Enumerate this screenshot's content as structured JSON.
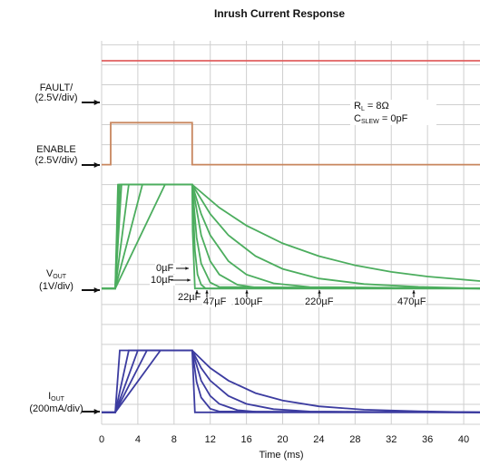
{
  "chart_data": {
    "type": "line",
    "title": "Inrush Current Response",
    "xlabel": "Time (ms)",
    "xlim": [
      0,
      41.8
    ],
    "xticks": [
      0,
      4,
      8,
      12,
      16,
      20,
      24,
      28,
      32,
      36,
      40
    ],
    "ylim": [
      0,
      19.2
    ],
    "yticks": [
      0,
      1,
      2,
      3,
      4,
      5,
      6,
      7,
      8,
      9,
      10,
      11,
      12,
      13,
      14,
      15,
      16,
      17,
      18,
      19
    ],
    "grid": true,
    "channels": [
      {
        "label": "FAULT/",
        "scale": "(2.5V/div)"
      },
      {
        "label": "ENABLE",
        "scale": "(2.5V/div)"
      },
      {
        "label": "V",
        "sub": "OUT",
        "scale": "(1V/div)"
      },
      {
        "label": "I",
        "sub": "OUT",
        "scale": "(200mA/div)"
      }
    ],
    "conditions": [
      {
        "label": "R",
        "sub": "L",
        "rest": " = 8Ω"
      },
      {
        "label": "C",
        "sub": "SLEW",
        "rest": " = 0pF"
      }
    ],
    "series": [
      {
        "color": "#e06060",
        "x": [
          0,
          41.8
        ],
        "values": [
          18.2,
          18.2
        ]
      },
      {
        "color": "#c8865e",
        "x": [
          0,
          1,
          1,
          10,
          10,
          41.8
        ],
        "values": [
          13.0,
          13.0,
          15.1,
          15.1,
          13.0,
          13.0
        ]
      },
      {
        "name": "0µF",
        "color": "#4cad5e",
        "x": [
          0,
          1.5,
          1.8,
          10,
          10.05,
          10.3,
          41.8
        ],
        "values": [
          6.8,
          6.8,
          12,
          12,
          9.7,
          6.8,
          6.8
        ]
      },
      {
        "name": "10µF",
        "color": "#4cad5e",
        "x": [
          0,
          1.5,
          1.9,
          10,
          10.3,
          10.6,
          11,
          11.5,
          41.8
        ],
        "values": [
          6.8,
          6.8,
          12,
          12,
          8.71,
          7.5,
          6.99,
          6.8,
          6.8
        ]
      },
      {
        "name": "22µF",
        "color": "#4cad5e",
        "x": [
          0,
          1.5,
          2.0,
          10,
          10.5,
          11,
          12,
          13,
          41.8
        ],
        "values": [
          6.8,
          6.8,
          12,
          12,
          9.35,
          8.05,
          7.1,
          6.87,
          6.8
        ]
      },
      {
        "name": "47µF",
        "color": "#4cad5e",
        "x": [
          0,
          1.5,
          2.2,
          10,
          11,
          12,
          13,
          15,
          17,
          41.8
        ],
        "values": [
          6.8,
          6.8,
          12,
          12,
          9.47,
          8.17,
          7.5,
          6.99,
          6.85,
          6.8
        ]
      },
      {
        "name": "100µF",
        "color": "#4cad5e",
        "x": [
          0,
          1.5,
          3.0,
          10,
          11,
          12,
          14,
          16,
          19,
          23,
          41.8
        ],
        "values": [
          6.8,
          6.8,
          12,
          12,
          10.53,
          9.47,
          8.17,
          7.5,
          7.06,
          6.87,
          6.8
        ]
      },
      {
        "name": "220µF",
        "color": "#4cad5e",
        "x": [
          0,
          1.5,
          4.5,
          10,
          12,
          14,
          17,
          20,
          24,
          29,
          35,
          41.8
        ],
        "values": [
          6.8,
          6.8,
          12,
          12,
          10.53,
          9.47,
          8.42,
          7.78,
          7.3,
          7.02,
          6.88,
          6.8
        ]
      },
      {
        "name": "470µF",
        "color": "#4cad5e",
        "x": [
          0,
          1.5,
          7.0,
          10,
          13,
          16,
          20,
          24,
          28,
          32,
          36,
          41.8
        ],
        "values": [
          6.8,
          6.8,
          12,
          12,
          10.85,
          9.95,
          9.06,
          8.42,
          7.96,
          7.63,
          7.4,
          7.17
        ]
      },
      {
        "color": "#3c3ca0",
        "x": [
          0,
          1.5,
          2.0,
          10,
          10.3,
          41.8
        ],
        "values": [
          0.6,
          0.6,
          3.7,
          3.7,
          0.6,
          0.6
        ]
      },
      {
        "color": "#3c3ca0",
        "x": [
          0,
          1.5,
          3.0,
          10,
          10.5,
          11,
          12,
          13,
          41.8
        ],
        "values": [
          0.6,
          0.6,
          3.7,
          3.7,
          2.12,
          1.34,
          0.78,
          0.64,
          0.6
        ]
      },
      {
        "color": "#3c3ca0",
        "x": [
          0,
          1.5,
          4.0,
          10,
          11,
          12,
          13,
          15,
          17,
          41.8
        ],
        "values": [
          0.6,
          0.6,
          3.7,
          3.7,
          2.19,
          1.42,
          1.02,
          0.71,
          0.63,
          0.6
        ]
      },
      {
        "color": "#3c3ca0",
        "x": [
          0,
          1.5,
          5.0,
          10,
          11,
          12,
          14,
          16,
          19,
          23,
          41.8
        ],
        "values": [
          0.6,
          0.6,
          3.7,
          3.7,
          2.82,
          2.19,
          1.42,
          1.02,
          0.76,
          0.64,
          0.6
        ]
      },
      {
        "color": "#3c3ca0",
        "x": [
          0,
          1.5,
          6.5,
          10,
          12,
          14,
          17,
          20,
          24,
          29,
          35,
          41.8
        ],
        "values": [
          0.6,
          0.6,
          3.7,
          3.7,
          2.82,
          2.19,
          1.56,
          1.19,
          0.9,
          0.73,
          0.65,
          0.6
        ]
      }
    ]
  }
}
